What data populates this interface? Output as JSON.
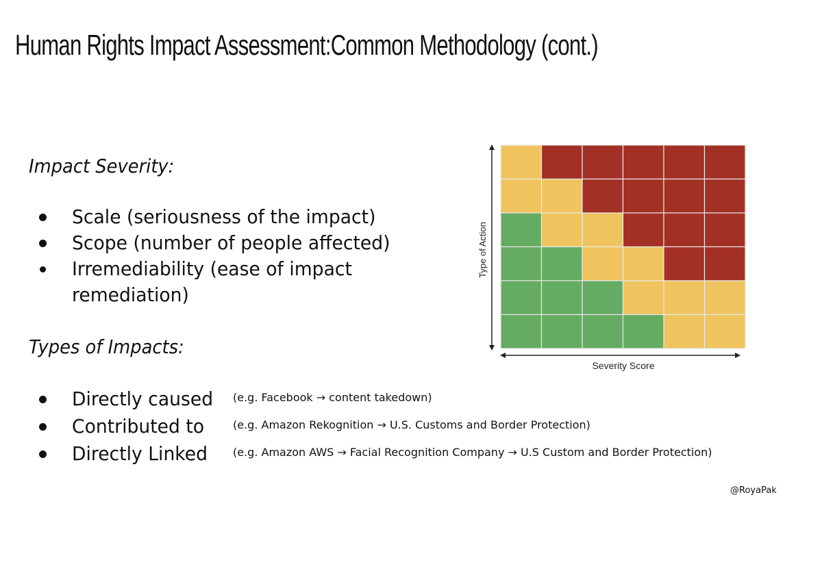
{
  "slide": {
    "title": "Human Rights Impact Assessment:Common Methodology (cont.)"
  },
  "impact_severity": {
    "heading": "Impact Severity:",
    "items": [
      {
        "text": "Scale (seriousness of the impact)"
      },
      {
        "text": "Scope (number of people affected)"
      },
      {
        "text": "Irremediability (ease of impact",
        "continuation": "remediation)"
      }
    ]
  },
  "types_of_impacts": {
    "heading": "Types of Impacts:",
    "items": [
      {
        "text": "Directly caused",
        "example": "(e.g. Facebook → content takedown)"
      },
      {
        "text": "Contributed to",
        "example": "(e.g. Amazon Rekognition → U.S. Customs and Border Protection)"
      },
      {
        "text": "Directly Linked",
        "example": "(e.g. Amazon AWS → Facial Recognition Company → U.S Custom and Border Protection)"
      }
    ]
  },
  "chart_data": {
    "type": "heatmap",
    "xlabel": "Severity Score",
    "ylabel": "Type of Action",
    "rows": 6,
    "cols": 6,
    "cells": [
      [
        "yellow",
        "red",
        "red",
        "red",
        "red",
        "red"
      ],
      [
        "yellow",
        "yellow",
        "red",
        "red",
        "red",
        "red"
      ],
      [
        "green",
        "yellow",
        "yellow",
        "red",
        "red",
        "red"
      ],
      [
        "green",
        "green",
        "yellow",
        "yellow",
        "red",
        "red"
      ],
      [
        "green",
        "green",
        "green",
        "yellow",
        "yellow",
        "yellow"
      ],
      [
        "green",
        "green",
        "green",
        "green",
        "yellow",
        "yellow"
      ]
    ],
    "colors": {
      "yellow": "#efc45f",
      "red": "#a33024",
      "green": "#65ab62",
      "gridline": "#e8e8e8"
    }
  },
  "credit": "@RoyaPak"
}
